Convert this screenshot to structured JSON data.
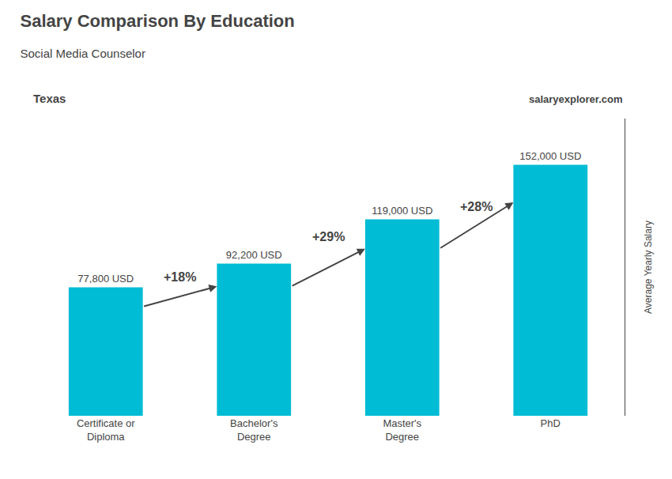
{
  "chart_data": {
    "type": "bar",
    "title": "Salary Comparison By Education",
    "subtitle": "Social Media Counselor",
    "location": "Texas",
    "watermark": "salaryexplorer.com",
    "ylabel": "Average Yearly Salary",
    "categories": [
      "Certificate or\nDiploma",
      "Bachelor's\nDegree",
      "Master's\nDegree",
      "PhD"
    ],
    "values": [
      77800,
      92200,
      119000,
      152000
    ],
    "value_labels": [
      "77,800 USD",
      "92,200 USD",
      "119,000 USD",
      "152,000 USD"
    ],
    "data_labels": true,
    "annotations": [
      "+18%",
      "+29%",
      "+28%"
    ],
    "color": "#00bcd4",
    "ylim": [
      0,
      180000
    ],
    "tick_labels": "x",
    "grid": false
  }
}
